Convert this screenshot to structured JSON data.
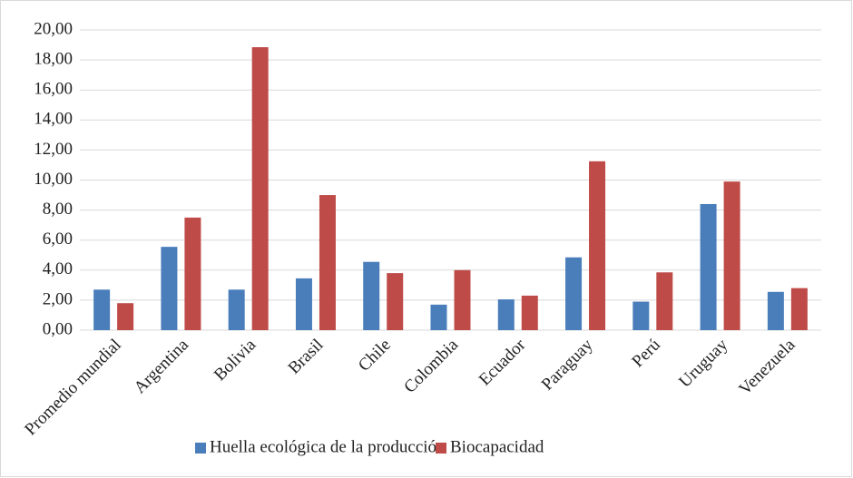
{
  "chart_data": {
    "type": "bar",
    "categories": [
      "Promedio mundial",
      "Argentina",
      "Bolivia",
      "Brasil",
      "Chile",
      "Colombia",
      "Ecuador",
      "Paraguay",
      "Perú",
      "Uruguay",
      "Venezuela"
    ],
    "series": [
      {
        "name": "Huella ecológica de la producción",
        "color": "#4a7ebb",
        "values": [
          2.7,
          5.55,
          2.7,
          3.45,
          4.55,
          1.7,
          2.05,
          4.85,
          1.9,
          8.4,
          2.55
        ]
      },
      {
        "name": "Biocapacidad",
        "color": "#be4b48",
        "values": [
          1.8,
          7.5,
          18.85,
          9.0,
          3.8,
          4.0,
          2.3,
          11.25,
          3.85,
          9.9,
          2.8
        ]
      }
    ],
    "ylim": [
      0,
      20
    ],
    "yticks": [
      {
        "value": 0,
        "label": "0,00"
      },
      {
        "value": 2,
        "label": "2,00"
      },
      {
        "value": 4,
        "label": "4,00"
      },
      {
        "value": 6,
        "label": "6,00"
      },
      {
        "value": 8,
        "label": "8,00"
      },
      {
        "value": 10,
        "label": "10,00"
      },
      {
        "value": 12,
        "label": "12,00"
      },
      {
        "value": 14,
        "label": "14,00"
      },
      {
        "value": 16,
        "label": "16,00"
      },
      {
        "value": 18,
        "label": "18,00"
      },
      {
        "value": 20,
        "label": "20,00"
      }
    ],
    "grid": true,
    "legend": "bottom"
  }
}
